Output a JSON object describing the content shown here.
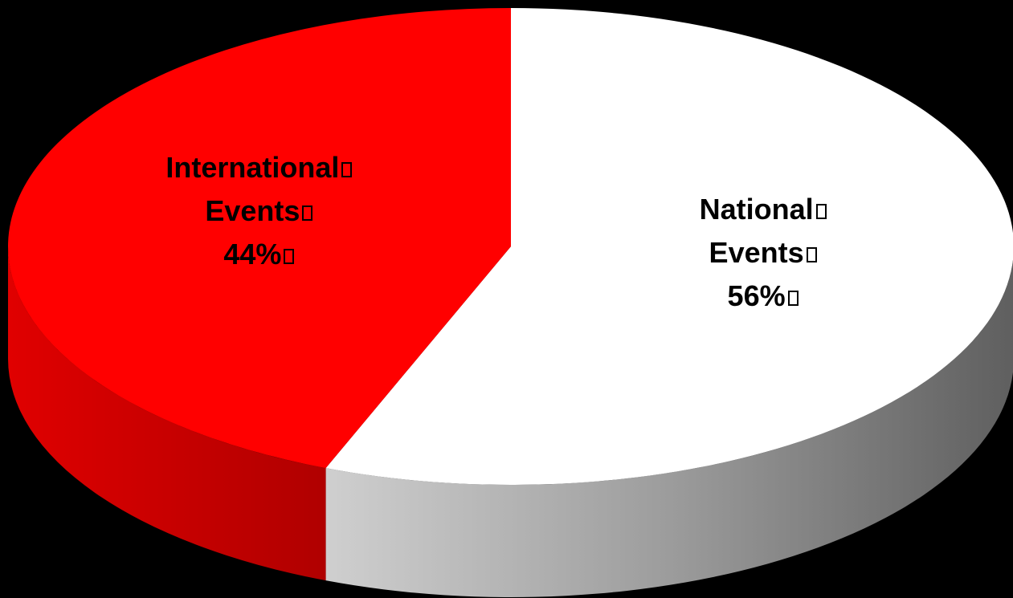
{
  "chart_data": {
    "type": "pie",
    "title": "",
    "style": "3d",
    "slices": [
      {
        "label": "National Events",
        "value": 56,
        "display_lines": [
          "National",
          "Events",
          "56%"
        ],
        "color": "#FFFFFF"
      },
      {
        "label": "International Events",
        "value": 44,
        "display_lines": [
          "International",
          "Events",
          "44%"
        ],
        "color": "#FF0000"
      }
    ],
    "background": "#000000",
    "legend": "none"
  }
}
